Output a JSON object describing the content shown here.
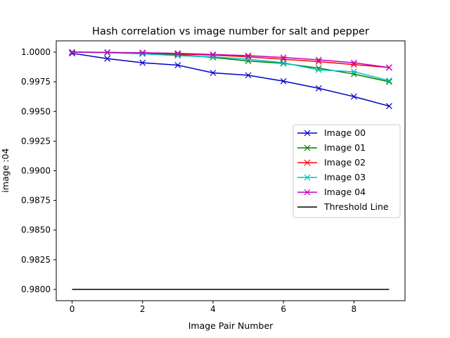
{
  "chart_data": {
    "type": "line",
    "title": "Hash correlation vs image number for salt and pepper",
    "xlabel": "Image Pair Number",
    "ylabel": "image :04",
    "xlim": [
      -0.45,
      9.45
    ],
    "ylim": [
      0.97905,
      1.00095
    ],
    "x_ticks": [
      0,
      2,
      4,
      6,
      8
    ],
    "x_tick_labels": [
      "0",
      "2",
      "4",
      "6",
      "8"
    ],
    "y_ticks": [
      0.98,
      0.9825,
      0.985,
      0.9875,
      0.99,
      0.9925,
      0.995,
      0.9975,
      1.0
    ],
    "y_tick_labels": [
      "0.9800",
      "0.9825",
      "0.9850",
      "0.9875",
      "0.9900",
      "0.9925",
      "0.9950",
      "0.9975",
      "1.0000"
    ],
    "grid": false,
    "legend_position": "center-right",
    "x": [
      0,
      1,
      2,
      3,
      4,
      5,
      6,
      7,
      8,
      9
    ],
    "series": [
      {
        "name": "Image 00",
        "color": "#0000cc",
        "marker": "x",
        "values": [
          0.9999,
          0.99945,
          0.9991,
          0.9989,
          0.99825,
          0.99805,
          0.99755,
          0.99695,
          0.99625,
          0.99545
        ]
      },
      {
        "name": "Image 01",
        "color": "#008000",
        "marker": "x",
        "values": [
          1.0,
          0.99995,
          0.9999,
          0.9998,
          0.99955,
          0.99925,
          0.99905,
          0.99865,
          0.99815,
          0.9975
        ]
      },
      {
        "name": "Image 02",
        "color": "#ff0000",
        "marker": "x",
        "values": [
          1.0,
          0.99998,
          0.99993,
          0.99985,
          0.99975,
          0.9996,
          0.9994,
          0.9992,
          0.99895,
          0.9987
        ]
      },
      {
        "name": "Image 03",
        "color": "#00bfbf",
        "marker": "x",
        "values": [
          1.0,
          0.99995,
          0.99985,
          0.9997,
          0.9996,
          0.9994,
          0.9991,
          0.9985,
          0.99835,
          0.9976
        ]
      },
      {
        "name": "Image 04",
        "color": "#bf00bf",
        "marker": "x",
        "values": [
          1.0,
          0.99998,
          0.99995,
          0.9999,
          0.9998,
          0.9997,
          0.99955,
          0.99935,
          0.9991,
          0.9987
        ]
      },
      {
        "name": "Threshold Line",
        "color": "#000000",
        "marker": "none",
        "x": [
          0,
          9
        ],
        "values": [
          0.98,
          0.98
        ]
      }
    ]
  }
}
